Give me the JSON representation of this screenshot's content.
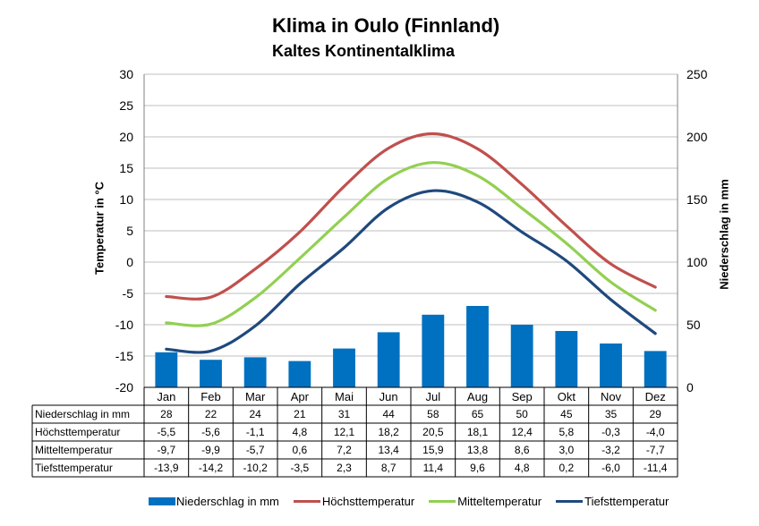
{
  "chart_data": {
    "type": "bar+line",
    "title": "Klima in Oulo (Finnland)",
    "subtitle": "Kaltes Kontinentalklima",
    "ylabel_left": "Temperatur in °C",
    "ylabel_right": "Niederschlag in mm",
    "ylim_left": [
      -20,
      30
    ],
    "yticks_left": [
      30,
      25,
      20,
      15,
      10,
      5,
      0,
      -5,
      -10,
      -15,
      -20
    ],
    "ylim_right": [
      0,
      250
    ],
    "yticks_right": [
      250,
      200,
      150,
      100,
      50,
      0
    ],
    "grid": true,
    "legend_position": "bottom",
    "categories": [
      "Jan",
      "Feb",
      "Mar",
      "Apr",
      "Mai",
      "Jun",
      "Jul",
      "Aug",
      "Sep",
      "Okt",
      "Nov",
      "Dez"
    ],
    "series": [
      {
        "name": "Niederschlag in mm",
        "kind": "bar",
        "axis": "right",
        "color": "#0070C0",
        "values": [
          28,
          22,
          24,
          21,
          31,
          44,
          58,
          65,
          50,
          45,
          35,
          29
        ],
        "labels": [
          "28",
          "22",
          "24",
          "21",
          "31",
          "44",
          "58",
          "65",
          "50",
          "45",
          "35",
          "29"
        ]
      },
      {
        "name": "Höchsttemperatur",
        "kind": "line",
        "axis": "left",
        "color": "#C0504D",
        "values": [
          -5.5,
          -5.6,
          -1.1,
          4.8,
          12.1,
          18.2,
          20.5,
          18.1,
          12.4,
          5.8,
          -0.3,
          -4.0
        ],
        "labels": [
          "-5,5",
          "-5,6",
          "-1,1",
          "4,8",
          "12,1",
          "18,2",
          "20,5",
          "18,1",
          "12,4",
          "5,8",
          "-0,3",
          "-4,0"
        ]
      },
      {
        "name": "Mitteltemperatur",
        "kind": "line",
        "axis": "left",
        "color": "#92D050",
        "values": [
          -9.7,
          -9.9,
          -5.7,
          0.6,
          7.2,
          13.4,
          15.9,
          13.8,
          8.6,
          3.0,
          -3.2,
          -7.7
        ],
        "labels": [
          "-9,7",
          "-9,9",
          "-5,7",
          "0,6",
          "7,2",
          "13,4",
          "15,9",
          "13,8",
          "8,6",
          "3,0",
          "-3,2",
          "-7,7"
        ]
      },
      {
        "name": "Tiefsttemperatur",
        "kind": "line",
        "axis": "left",
        "color": "#1F497D",
        "values": [
          -13.9,
          -14.2,
          -10.2,
          -3.5,
          2.3,
          8.7,
          11.4,
          9.6,
          4.8,
          0.2,
          -6.0,
          -11.4
        ],
        "labels": [
          "-13,9",
          "-14,2",
          "-10,2",
          "-3,5",
          "2,3",
          "8,7",
          "11,4",
          "9,6",
          "4,8",
          "0,2",
          "-6,0",
          "-11,4"
        ]
      }
    ]
  }
}
